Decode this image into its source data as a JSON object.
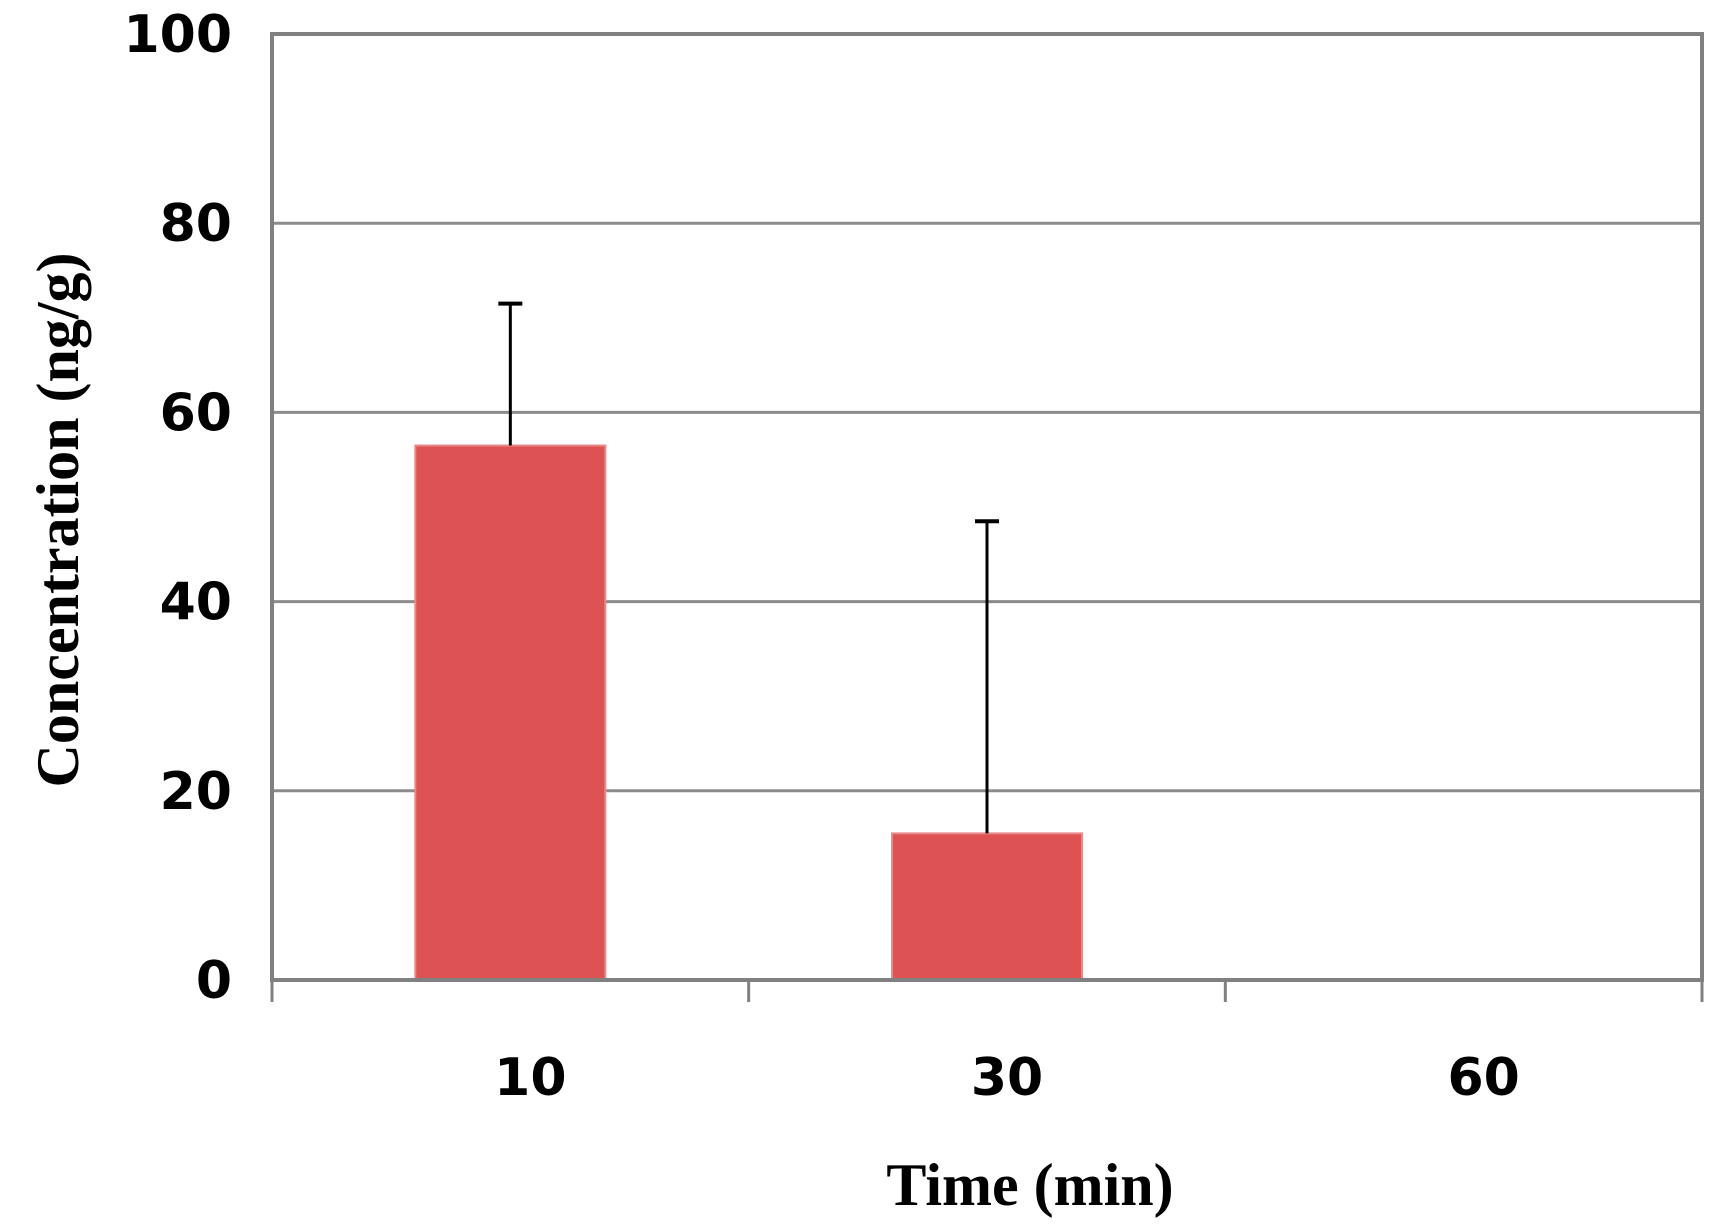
{
  "chart_data": {
    "type": "bar",
    "title": "",
    "xlabel": "Time (min)",
    "ylabel": "Concentration (ng/g)",
    "categories": [
      "10",
      "30",
      "60"
    ],
    "values": [
      56.5,
      15.5,
      0
    ],
    "error_upper": [
      71.5,
      48.5,
      null
    ],
    "ylim": [
      0,
      100
    ],
    "yticks": [
      "0",
      "20",
      "40",
      "60",
      "80",
      "100"
    ],
    "grid": true,
    "legend": "none",
    "bar_color": "#dd5252"
  }
}
